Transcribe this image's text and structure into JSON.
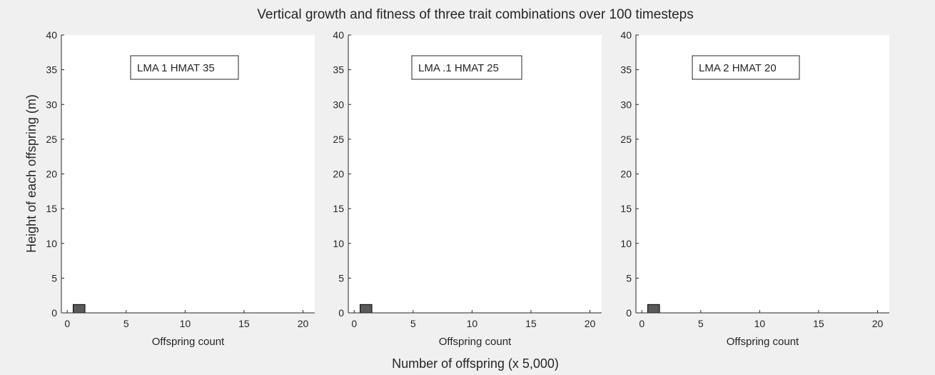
{
  "figure": {
    "title": "Vertical growth and fitness of three trait combinations over 100 timesteps",
    "xlabel": "Number of offspring (x 5,000)",
    "ylabel": "Height of each offspring (m)",
    "background_color": "#f0f0f0"
  },
  "chart_data": [
    {
      "type": "bar",
      "annotation": "LMA 1 HMAT 35",
      "xlabel": "Offspring count",
      "ylabel": "",
      "xlim": [
        -0.5,
        21
      ],
      "ylim": [
        0,
        40
      ],
      "xticks": [
        0,
        5,
        10,
        15,
        20
      ],
      "yticks": [
        0,
        5,
        10,
        15,
        20,
        25,
        30,
        35,
        40
      ],
      "bars": [
        {
          "x": 1,
          "y": 1.2
        }
      ],
      "bar_width": 1,
      "bar_color": "#5a5a5a",
      "grid": false
    },
    {
      "type": "bar",
      "annotation": "LMA .1 HMAT 25",
      "xlabel": "Offspring count",
      "ylabel": "",
      "xlim": [
        -0.5,
        21
      ],
      "ylim": [
        0,
        40
      ],
      "xticks": [
        0,
        5,
        10,
        15,
        20
      ],
      "yticks": [
        0,
        5,
        10,
        15,
        20,
        25,
        30,
        35,
        40
      ],
      "bars": [
        {
          "x": 1,
          "y": 1.2
        }
      ],
      "bar_width": 1,
      "bar_color": "#5a5a5a",
      "grid": false
    },
    {
      "type": "bar",
      "annotation": "LMA 2 HMAT 20",
      "xlabel": "Offspring count",
      "ylabel": "",
      "xlim": [
        -0.5,
        21
      ],
      "ylim": [
        0,
        40
      ],
      "xticks": [
        0,
        5,
        10,
        15,
        20
      ],
      "yticks": [
        0,
        5,
        10,
        15,
        20,
        25,
        30,
        35,
        40
      ],
      "bars": [
        {
          "x": 1,
          "y": 1.2
        }
      ],
      "bar_width": 1,
      "bar_color": "#5a5a5a",
      "grid": false
    }
  ]
}
